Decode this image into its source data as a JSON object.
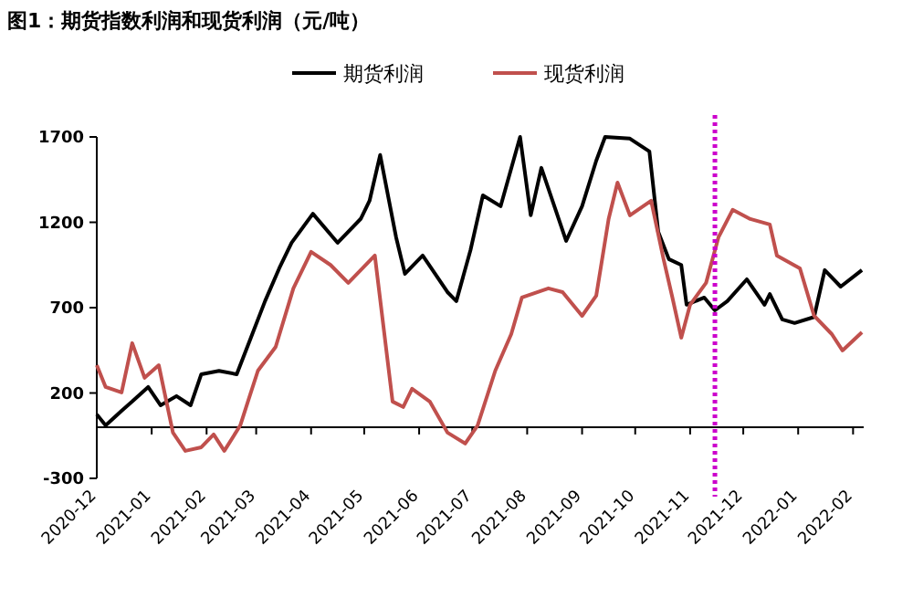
{
  "chart_data": {
    "type": "line",
    "title": "图1：期货指数利润和现货利润（元/吨）",
    "legend": "top",
    "x": [
      "2020-12-01",
      "2020-12-06",
      "2020-12-15",
      "2020-12-21",
      "2020-12-30",
      "2021-01-06",
      "2021-01-15",
      "2021-01-23",
      "2021-01-29",
      "2021-02-08",
      "2021-02-18",
      "2021-02-26",
      "2021-03-06",
      "2021-03-14",
      "2021-03-21",
      "2021-04-02",
      "2021-04-16",
      "2021-04-29",
      "2021-05-04",
      "2021-05-10",
      "2021-05-19",
      "2021-05-24",
      "2021-06-03",
      "2021-06-17",
      "2021-06-20",
      "2021-06-22",
      "2021-06-30",
      "2021-07-07",
      "2021-07-17",
      "2021-07-28",
      "2021-08-03",
      "2021-08-09",
      "2021-08-23",
      "2021-09-01",
      "2021-09-09",
      "2021-09-14",
      "2021-09-28",
      "2021-10-09",
      "2021-10-14",
      "2021-10-20",
      "2021-10-27",
      "2021-10-30",
      "2021-11-09",
      "2021-11-15",
      "2021-11-22",
      "2021-12-03",
      "2021-12-13",
      "2021-12-16",
      "2021-12-23",
      "2021-12-30",
      "2022-01-10",
      "2022-01-16",
      "2022-01-25",
      "2022-02-06"
    ],
    "series": [
      {
        "name": "期货利润",
        "color": "#000000",
        "values": [
          75,
          10,
          96,
          150,
          235,
          128,
          182,
          128,
          310,
          330,
          310,
          524,
          738,
          930,
          1080,
          1250,
          1080,
          1220,
          1326,
          1594,
          1112,
          898,
          1005,
          791,
          759,
          738,
          1037,
          1358,
          1294,
          1700,
          1241,
          1519,
          1091,
          1294,
          1561,
          1700,
          1690,
          1615,
          1144,
          984,
          950,
          717,
          759,
          684,
          738,
          866,
          717,
          780,
          631,
          610,
          645,
          920,
          823,
          920
        ]
      },
      {
        "name": "现货利润",
        "color": "#c0504d",
        "x": [
          "2020-12-01",
          "2020-12-06",
          "2020-12-15",
          "2020-12-21",
          "2020-12-28",
          "2021-01-05",
          "2021-01-13",
          "2021-01-20",
          "2021-01-29",
          "2021-02-05",
          "2021-02-11",
          "2021-02-20",
          "2021-02-25",
          "2021-03-02",
          "2021-03-12",
          "2021-03-22",
          "2021-04-01",
          "2021-04-12",
          "2021-04-22",
          "2021-04-29",
          "2021-05-07",
          "2021-05-17",
          "2021-05-23",
          "2021-05-28",
          "2021-06-07",
          "2021-06-17",
          "2021-06-27",
          "2021-07-04",
          "2021-07-14",
          "2021-07-23",
          "2021-07-29",
          "2021-08-13",
          "2021-08-21",
          "2021-09-01",
          "2021-09-09",
          "2021-09-16",
          "2021-09-21",
          "2021-09-28",
          "2021-10-10",
          "2021-10-17",
          "2021-10-22",
          "2021-10-27",
          "2021-11-01",
          "2021-11-10",
          "2021-11-17",
          "2021-11-25",
          "2021-12-05",
          "2021-12-16",
          "2021-12-20",
          "2022-01-02",
          "2022-01-10",
          "2022-01-20",
          "2022-01-26",
          "2022-02-06"
        ],
        "values": [
          363,
          235,
          203,
          492,
          289,
          363,
          -32,
          -139,
          -118,
          -43,
          -139,
          10,
          171,
          331,
          470,
          813,
          1027,
          950,
          845,
          920,
          1005,
          150,
          118,
          225,
          150,
          -32,
          -96,
          10,
          331,
          545,
          759,
          813,
          791,
          652,
          770,
          1220,
          1433,
          1241,
          1326,
          984,
          759,
          524,
          717,
          845,
          1112,
          1273,
          1219,
          1187,
          1005,
          930,
          652,
          545,
          449,
          556
        ]
      }
    ],
    "xlim": [
      "2020-12-01",
      "2022-02-07"
    ],
    "xticks": [
      "2020-12",
      "2021-01",
      "2021-02",
      "2021-03",
      "2021-04",
      "2021-05",
      "2021-06",
      "2021-07",
      "2021-08",
      "2021-09",
      "2021-10",
      "2021-11",
      "2021-12",
      "2022-01",
      "2022-02"
    ],
    "ylim": [
      -300,
      1700
    ],
    "yticks": [
      -300,
      200,
      700,
      1200,
      1700
    ],
    "ref_lines": [
      {
        "axis": "x",
        "value": "2021-11-15",
        "color": "#cc00cc",
        "line_style": "dotted"
      }
    ]
  }
}
